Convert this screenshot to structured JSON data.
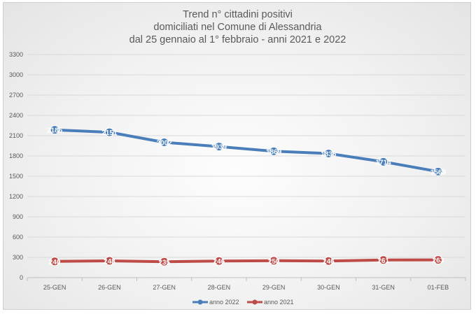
{
  "chart_data": {
    "type": "line",
    "title_lines": [
      "Trend n° cittadini positivi",
      "domiciliati nel Comune di Alessandria",
      "dal 25 gennaio al 1° febbraio - anni 2021 e 2022"
    ],
    "categories": [
      "25-GEN",
      "26-GEN",
      "27-GEN",
      "28-GEN",
      "29-GEN",
      "30-GEN",
      "31-GEN",
      "01-FEB"
    ],
    "series": [
      {
        "name": "anno 2022",
        "color": "#4a7ebb",
        "values": [
          2186,
          2151,
          2002,
          1939,
          1869,
          1836,
          1714,
          1569
        ],
        "labels": [
          "2186",
          "2151",
          "2002",
          "1939",
          "1869",
          "1836",
          "1714",
          "1569"
        ]
      },
      {
        "name": "anno 2021",
        "color": "#be4b48",
        "values": [
          240,
          248,
          235,
          246,
          250,
          246,
          261,
          263
        ],
        "labels": [
          "240",
          "248",
          "235",
          "246",
          "250",
          "246",
          "261",
          "263"
        ]
      }
    ],
    "yticks": [
      "0",
      "300",
      "600",
      "900",
      "1200",
      "1500",
      "1800",
      "2100",
      "2400",
      "2700",
      "3000",
      "3300"
    ],
    "ylim": [
      0,
      3300
    ],
    "grid": true,
    "legend_position": "bottom"
  }
}
